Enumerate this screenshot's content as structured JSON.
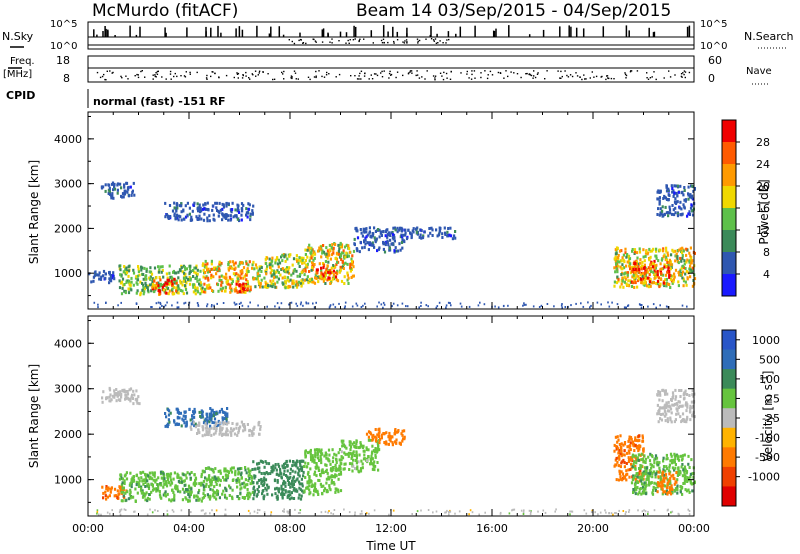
{
  "header": {
    "station": "McMurdo (fitACF)",
    "beam_info": "Beam 14  03/Sep/2015 - 04/Sep/2015"
  },
  "aux": {
    "nsky_label": "N.Sky",
    "nsky_tick_top": "10^5",
    "nsky_tick_bottom": "10^0",
    "nsearch_label": "N.Search",
    "nsearch_tick_top": "10^5",
    "nsearch_tick_bottom": "10^0",
    "freq_label_1": "Freq.",
    "freq_label_2": "[MHz]",
    "freq_tick_top": "18",
    "freq_tick_bottom": "8",
    "nave_label": "Nave",
    "nave_tick_top": "60",
    "nave_tick_bottom": "0",
    "cpid_label": "CPID",
    "cpid_text": "normal (fast) -151 RF"
  },
  "colors": {
    "axes": "#000000",
    "power_scale": [
      "#1a1aff",
      "#2f57b0",
      "#3b8a59",
      "#5ec04a",
      "#f0d800",
      "#ff9a00",
      "#ff5a00",
      "#f00000"
    ],
    "velocity_scale": [
      "#2855c8",
      "#2f6db8",
      "#3b8a59",
      "#66c43e",
      "#bbbbbb",
      "#ffb300",
      "#ff7a00",
      "#f04000",
      "#e00000"
    ]
  },
  "chart_data": [
    {
      "type": "heatmap",
      "panel": "power",
      "ylabel": "Slant Range [km]",
      "ylim": [
        200,
        4600
      ],
      "yticks": [
        "1000",
        "2000",
        "3000",
        "4000"
      ],
      "xlim": [
        0,
        24
      ],
      "colorbar": {
        "label": "Power [dB]",
        "ticks": [
          "4",
          "8",
          "12",
          "16",
          "20",
          "24",
          "28"
        ]
      },
      "regions": [
        {
          "t0": 0.0,
          "t1": 1.0,
          "r0": 820,
          "r1": 1100,
          "value": 6
        },
        {
          "t0": 0.5,
          "t1": 1.8,
          "r0": 2700,
          "r1": 3050,
          "value": 6
        },
        {
          "t0": 1.2,
          "t1": 4.5,
          "r0": 550,
          "r1": 1200,
          "value": 14
        },
        {
          "t0": 2.5,
          "t1": 3.5,
          "r0": 550,
          "r1": 900,
          "value": 26
        },
        {
          "t0": 3.0,
          "t1": 6.5,
          "r0": 2200,
          "r1": 2600,
          "value": 6
        },
        {
          "t0": 4.5,
          "t1": 6.5,
          "r0": 600,
          "r1": 1300,
          "value": 20
        },
        {
          "t0": 5.8,
          "t1": 6.3,
          "r0": 600,
          "r1": 800,
          "value": 28
        },
        {
          "t0": 6.5,
          "t1": 8.5,
          "r0": 700,
          "r1": 1450,
          "value": 16
        },
        {
          "t0": 8.5,
          "t1": 10.5,
          "r0": 800,
          "r1": 1700,
          "value": 18
        },
        {
          "t0": 9.0,
          "t1": 9.8,
          "r0": 900,
          "r1": 1200,
          "value": 26
        },
        {
          "t0": 10.5,
          "t1": 12.5,
          "r0": 1500,
          "r1": 2050,
          "value": 6
        },
        {
          "t0": 12.5,
          "t1": 14.5,
          "r0": 1800,
          "r1": 2050,
          "value": 6
        },
        {
          "t0": 20.8,
          "t1": 24.0,
          "r0": 700,
          "r1": 1600,
          "value": 18
        },
        {
          "t0": 21.5,
          "t1": 23.0,
          "r0": 800,
          "r1": 1300,
          "value": 26
        },
        {
          "t0": 22.5,
          "t1": 24.0,
          "r0": 2300,
          "r1": 3000,
          "value": 6
        }
      ]
    },
    {
      "type": "heatmap",
      "panel": "velocity",
      "ylabel": "Slant Range [km]",
      "ylim": [
        200,
        4600
      ],
      "yticks": [
        "1000",
        "2000",
        "3000",
        "4000"
      ],
      "xlim": [
        0,
        24
      ],
      "xticks": [
        "00:00",
        "04:00",
        "08:00",
        "12:00",
        "16:00",
        "20:00",
        "00:00"
      ],
      "xlabel": "Time UT",
      "colorbar": {
        "label": "Velocity [m s^-1]",
        "ticks": [
          "1000",
          "500",
          "100",
          "25",
          "-25",
          "-100",
          "-500",
          "-1000"
        ]
      },
      "regions": [
        {
          "t0": 0.5,
          "t1": 1.5,
          "r0": 600,
          "r1": 900,
          "value": -400
        },
        {
          "t0": 1.2,
          "t1": 4.5,
          "r0": 550,
          "r1": 1200,
          "value": 80
        },
        {
          "t0": 0.5,
          "t1": 2.0,
          "r0": 2700,
          "r1": 3050,
          "value": 0
        },
        {
          "t0": 3.0,
          "t1": 5.5,
          "r0": 2200,
          "r1": 2600,
          "value": 700
        },
        {
          "t0": 4.0,
          "t1": 6.8,
          "r0": 2000,
          "r1": 2300,
          "value": 0
        },
        {
          "t0": 4.5,
          "t1": 6.5,
          "r0": 600,
          "r1": 1300,
          "value": 80
        },
        {
          "t0": 6.5,
          "t1": 8.5,
          "r0": 600,
          "r1": 1450,
          "value": 300
        },
        {
          "t0": 8.5,
          "t1": 10.0,
          "r0": 700,
          "r1": 1700,
          "value": 60
        },
        {
          "t0": 10.0,
          "t1": 11.5,
          "r0": 1200,
          "r1": 1900,
          "value": 40
        },
        {
          "t0": 11.0,
          "t1": 12.5,
          "r0": 1800,
          "r1": 2150,
          "value": -200
        },
        {
          "t0": 20.8,
          "t1": 22.0,
          "r0": 1000,
          "r1": 2000,
          "value": -400
        },
        {
          "t0": 21.5,
          "t1": 24.0,
          "r0": 700,
          "r1": 1600,
          "value": 80
        },
        {
          "t0": 22.5,
          "t1": 23.3,
          "r0": 700,
          "r1": 1200,
          "value": -300
        },
        {
          "t0": 22.5,
          "t1": 24.0,
          "r0": 2300,
          "r1": 3000,
          "value": 0
        }
      ]
    }
  ]
}
